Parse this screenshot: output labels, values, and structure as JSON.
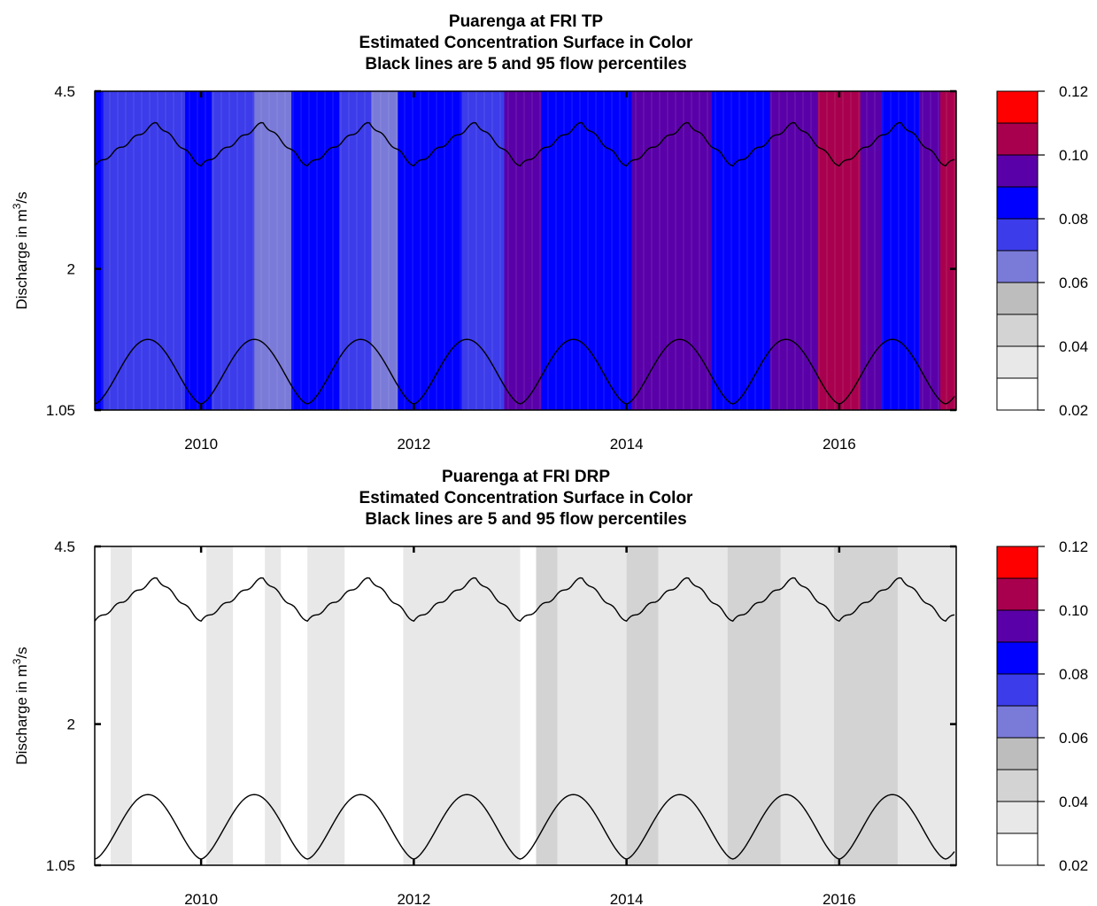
{
  "chart_data": [
    {
      "type": "heatmap",
      "title_lines": [
        "Puarenga at FRI    TP",
        "Estimated Concentration Surface in Color",
        "Black lines are 5 and 95 flow percentiles"
      ],
      "ylabel": "Discharge in m³/s",
      "ylabel_parts": {
        "pre": "Discharge in m",
        "sup": "3",
        "post": "/s"
      },
      "x_ticks": [
        "2010",
        "2012",
        "2014",
        "2016"
      ],
      "x_tick_values": [
        2010,
        2012,
        2014,
        2016
      ],
      "xlim": [
        2009.0,
        2017.1
      ],
      "y_ticks": [
        "4.5",
        "2",
        "1.05"
      ],
      "y_tick_values": [
        4.5,
        2,
        1.05
      ],
      "ylim": [
        1.05,
        4.5
      ],
      "y_scale": "log",
      "colorbar": {
        "labels": [
          "0.12",
          "0.10",
          "0.08",
          "0.06",
          "0.04",
          "0.02"
        ],
        "values": [
          0.12,
          0.1,
          0.08,
          0.06,
          0.04,
          0.02
        ],
        "bin_colors": [
          "#ff0000",
          "#a8004e",
          "#5a00a8",
          "#0000ff",
          "#3c3cea",
          "#7a7ad8",
          "#bdbdbd",
          "#d3d3d3",
          "#e8e8e8",
          "#ffffff"
        ]
      },
      "surface_bands": [
        {
          "x0": 2009.0,
          "x1": 2009.08,
          "color": "#0000ff"
        },
        {
          "x0": 2009.08,
          "x1": 2009.85,
          "color": "#3c3cea"
        },
        {
          "x0": 2009.85,
          "x1": 2010.1,
          "color": "#0000ff"
        },
        {
          "x0": 2010.1,
          "x1": 2010.5,
          "color": "#3c3cea"
        },
        {
          "x0": 2010.5,
          "x1": 2010.85,
          "color": "#7a7ad8"
        },
        {
          "x0": 2010.85,
          "x1": 2011.3,
          "color": "#0000ff"
        },
        {
          "x0": 2011.3,
          "x1": 2011.6,
          "color": "#3c3cea"
        },
        {
          "x0": 2011.6,
          "x1": 2011.85,
          "color": "#7a7ad8"
        },
        {
          "x0": 2011.85,
          "x1": 2012.45,
          "color": "#0000ff"
        },
        {
          "x0": 2012.45,
          "x1": 2012.85,
          "color": "#3c3cea"
        },
        {
          "x0": 2012.85,
          "x1": 2013.2,
          "color": "#5a00a8"
        },
        {
          "x0": 2013.2,
          "x1": 2014.05,
          "color": "#0000ff"
        },
        {
          "x0": 2014.05,
          "x1": 2014.8,
          "color": "#5a00a8"
        },
        {
          "x0": 2014.8,
          "x1": 2015.35,
          "color": "#0000ff"
        },
        {
          "x0": 2015.35,
          "x1": 2015.8,
          "color": "#5a00a8"
        },
        {
          "x0": 2015.8,
          "x1": 2016.2,
          "color": "#a8004e"
        },
        {
          "x0": 2016.2,
          "x1": 2016.4,
          "color": "#5a00a8"
        },
        {
          "x0": 2016.4,
          "x1": 2016.75,
          "color": "#0000ff"
        },
        {
          "x0": 2016.75,
          "x1": 2016.95,
          "color": "#5a00a8"
        },
        {
          "x0": 2016.95,
          "x1": 2017.1,
          "color": "#a8004e"
        }
      ],
      "flow_percentiles": {
        "p95_range": [
          3.2,
          3.9
        ],
        "p5_range": [
          1.08,
          1.45
        ]
      }
    },
    {
      "type": "heatmap",
      "title_lines": [
        "Puarenga at FRI    DRP",
        "Estimated Concentration Surface in Color",
        "Black lines are 5 and 95 flow percentiles"
      ],
      "ylabel": "Discharge in m³/s",
      "ylabel_parts": {
        "pre": "Discharge in m",
        "sup": "3",
        "post": "/s"
      },
      "x_ticks": [
        "2010",
        "2012",
        "2014",
        "2016"
      ],
      "x_tick_values": [
        2010,
        2012,
        2014,
        2016
      ],
      "xlim": [
        2009.0,
        2017.1
      ],
      "y_ticks": [
        "4.5",
        "2",
        "1.05"
      ],
      "y_tick_values": [
        4.5,
        2,
        1.05
      ],
      "ylim": [
        1.05,
        4.5
      ],
      "y_scale": "log",
      "colorbar": {
        "labels": [
          "0.12",
          "0.10",
          "0.08",
          "0.06",
          "0.04",
          "0.02"
        ],
        "values": [
          0.12,
          0.1,
          0.08,
          0.06,
          0.04,
          0.02
        ],
        "bin_colors": [
          "#ff0000",
          "#a8004e",
          "#5a00a8",
          "#0000ff",
          "#3c3cea",
          "#7a7ad8",
          "#bdbdbd",
          "#d3d3d3",
          "#e8e8e8",
          "#ffffff"
        ]
      },
      "surface_bands": [
        {
          "x0": 2009.0,
          "x1": 2009.1,
          "color": "#ffffff"
        },
        {
          "x0": 2009.15,
          "x1": 2009.35,
          "color": "#e8e8e8"
        },
        {
          "x0": 2010.05,
          "x1": 2010.3,
          "color": "#e8e8e8"
        },
        {
          "x0": 2010.6,
          "x1": 2010.75,
          "color": "#e8e8e8"
        },
        {
          "x0": 2011.0,
          "x1": 2011.35,
          "color": "#e8e8e8"
        },
        {
          "x0": 2011.9,
          "x1": 2012.55,
          "color": "#e8e8e8"
        },
        {
          "x0": 2012.55,
          "x1": 2013.0,
          "color": "#e8e8e8"
        },
        {
          "x0": 2013.15,
          "x1": 2013.35,
          "color": "#d3d3d3"
        },
        {
          "x0": 2013.35,
          "x1": 2014.0,
          "color": "#e8e8e8"
        },
        {
          "x0": 2014.0,
          "x1": 2014.3,
          "color": "#d3d3d3"
        },
        {
          "x0": 2014.3,
          "x1": 2014.95,
          "color": "#e8e8e8"
        },
        {
          "x0": 2014.95,
          "x1": 2015.45,
          "color": "#d3d3d3"
        },
        {
          "x0": 2015.45,
          "x1": 2015.95,
          "color": "#e8e8e8"
        },
        {
          "x0": 2015.95,
          "x1": 2016.55,
          "color": "#d3d3d3"
        },
        {
          "x0": 2016.55,
          "x1": 2017.1,
          "color": "#e8e8e8"
        }
      ],
      "flow_percentiles": {
        "p95_range": [
          3.2,
          3.9
        ],
        "p5_range": [
          1.08,
          1.45
        ]
      }
    }
  ]
}
